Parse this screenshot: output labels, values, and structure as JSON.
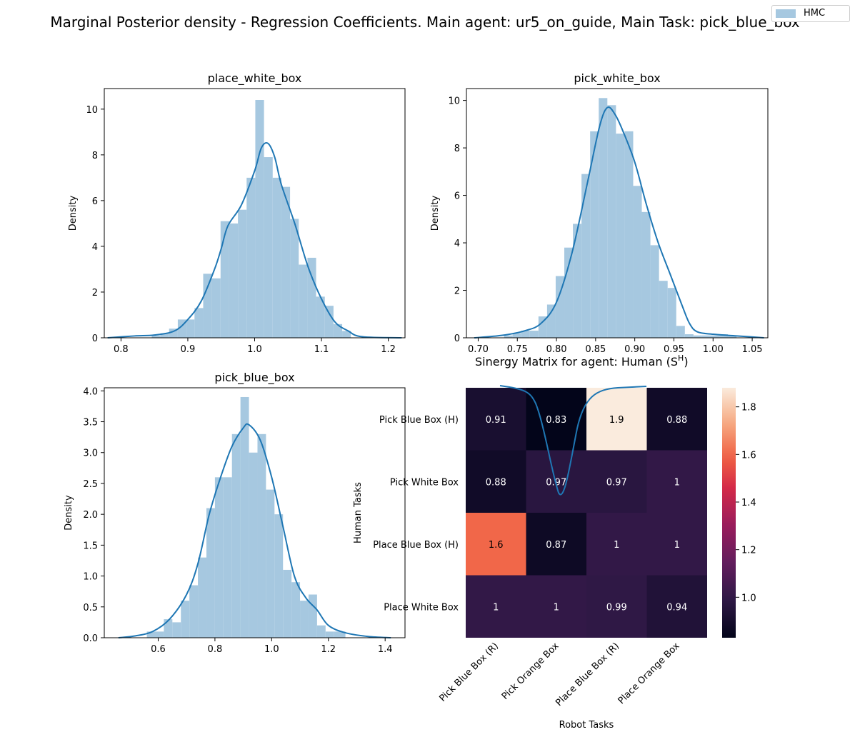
{
  "figure": {
    "suptitle": "Marginal Posterior density - Regression Coefficients. Main agent: ur5_on_guide, Main Task: pick_blue_box",
    "legend": {
      "label": "HMC",
      "placement": "top-right"
    },
    "colors": {
      "hist": "#a6c8e0",
      "kde": "#1f77b4"
    }
  },
  "chart_data": [
    {
      "type": "area",
      "title": "place_white_box",
      "xlabel": "",
      "ylabel": "Density",
      "xlim": [
        0.775,
        1.225
      ],
      "ylim": [
        0,
        10.9
      ],
      "xticks": [
        "0.8",
        "0.9",
        "1.0",
        "1.1",
        "1.2"
      ],
      "xtick_values": [
        0.8,
        0.9,
        1.0,
        1.1,
        1.2
      ],
      "yticks": [
        "0",
        "2",
        "4",
        "6",
        "8",
        "10"
      ],
      "ytick_values": [
        0,
        2,
        4,
        6,
        8,
        10
      ],
      "bin_edges": [
        0.846,
        0.859,
        0.872,
        0.885,
        0.898,
        0.91,
        0.923,
        0.936,
        0.949,
        0.962,
        0.975,
        0.988,
        1.001,
        1.014,
        1.027,
        1.04,
        1.053,
        1.066,
        1.079,
        1.092,
        1.105,
        1.118,
        1.131,
        1.144
      ],
      "hist_values": [
        0.1,
        0.2,
        0.4,
        0.8,
        0.8,
        1.3,
        2.8,
        2.6,
        5.1,
        5.0,
        5.6,
        7.0,
        10.4,
        7.9,
        7.0,
        6.6,
        5.2,
        3.2,
        3.5,
        1.8,
        1.4,
        0.6,
        0.3
      ],
      "kde": {
        "x": [
          0.78,
          0.82,
          0.85,
          0.88,
          0.9,
          0.92,
          0.94,
          0.95,
          0.96,
          0.98,
          1.0,
          1.01,
          1.02,
          1.03,
          1.04,
          1.06,
          1.08,
          1.1,
          1.12,
          1.14,
          1.16,
          1.22
        ],
        "y": [
          0,
          0.08,
          0.12,
          0.3,
          0.8,
          1.6,
          3.0,
          3.9,
          4.9,
          5.8,
          7.3,
          8.3,
          8.5,
          7.9,
          6.7,
          5.0,
          3.1,
          1.7,
          0.7,
          0.3,
          0.05,
          0
        ]
      }
    },
    {
      "type": "area",
      "title": "pick_white_box",
      "xlabel": "",
      "ylabel": "Density",
      "xlim": [
        0.685,
        1.07
      ],
      "ylim": [
        0,
        10.5
      ],
      "xticks": [
        "0.70",
        "0.75",
        "0.80",
        "0.85",
        "0.90",
        "0.95",
        "1.00",
        "1.05"
      ],
      "xtick_values": [
        0.7,
        0.75,
        0.8,
        0.85,
        0.9,
        0.95,
        1.0,
        1.05
      ],
      "yticks": [
        "0",
        "2",
        "4",
        "6",
        "8",
        "10"
      ],
      "ytick_values": [
        0,
        2,
        4,
        6,
        8,
        10
      ],
      "bin_edges": [
        0.733,
        0.744,
        0.755,
        0.766,
        0.777,
        0.788,
        0.799,
        0.81,
        0.821,
        0.832,
        0.843,
        0.854,
        0.865,
        0.876,
        0.887,
        0.898,
        0.909,
        0.92,
        0.931,
        0.942,
        0.953,
        0.964,
        0.975,
        0.986,
        0.997,
        1.008,
        1.019,
        1.03
      ],
      "hist_values": [
        0.1,
        0.2,
        0.3,
        0.3,
        0.9,
        1.4,
        2.6,
        3.8,
        4.8,
        6.9,
        8.7,
        10.1,
        9.8,
        8.6,
        8.7,
        6.4,
        5.3,
        3.9,
        2.4,
        2.1,
        0.5,
        0.15,
        0.1,
        0.1,
        0.1,
        0.15,
        0.1
      ],
      "kde": {
        "x": [
          0.695,
          0.73,
          0.76,
          0.78,
          0.8,
          0.82,
          0.84,
          0.855,
          0.865,
          0.875,
          0.885,
          0.9,
          0.915,
          0.93,
          0.945,
          0.96,
          0.97,
          0.98,
          1.0,
          1.03,
          1.065
        ],
        "y": [
          0,
          0.1,
          0.3,
          0.6,
          1.5,
          3.6,
          6.6,
          8.9,
          9.7,
          9.4,
          8.7,
          7.4,
          5.6,
          4.0,
          2.7,
          1.4,
          0.6,
          0.25,
          0.15,
          0.08,
          0
        ]
      }
    },
    {
      "type": "area",
      "title": "pick_blue_box",
      "xlabel": "",
      "ylabel": "Density",
      "xlim": [
        0.41,
        1.47
      ],
      "ylim": [
        0,
        4.05
      ],
      "xticks": [
        "0.6",
        "0.8",
        "1.0",
        "1.2",
        "1.4"
      ],
      "xtick_values": [
        0.6,
        0.8,
        1.0,
        1.2,
        1.4
      ],
      "yticks": [
        "0.0",
        "0.5",
        "1.0",
        "1.5",
        "2.0",
        "2.5",
        "3.0",
        "3.5",
        "4.0"
      ],
      "ytick_values": [
        0,
        0.5,
        1.0,
        1.5,
        2.0,
        2.5,
        3.0,
        3.5,
        4.0
      ],
      "bin_edges": [
        0.56,
        0.59,
        0.62,
        0.65,
        0.68,
        0.71,
        0.74,
        0.77,
        0.8,
        0.83,
        0.86,
        0.89,
        0.92,
        0.95,
        0.98,
        1.01,
        1.04,
        1.07,
        1.1,
        1.13,
        1.16,
        1.19,
        1.22,
        1.26
      ],
      "hist_values": [
        0.1,
        0.1,
        0.3,
        0.25,
        0.6,
        0.85,
        1.3,
        2.1,
        2.6,
        2.6,
        3.3,
        3.9,
        3.0,
        3.3,
        2.4,
        2.0,
        1.1,
        0.9,
        0.6,
        0.7,
        0.2,
        0.1,
        0.1
      ],
      "kde": {
        "x": [
          0.46,
          0.52,
          0.58,
          0.64,
          0.7,
          0.74,
          0.78,
          0.82,
          0.86,
          0.9,
          0.92,
          0.96,
          1.0,
          1.04,
          1.08,
          1.12,
          1.16,
          1.2,
          1.26,
          1.34,
          1.42
        ],
        "y": [
          0,
          0.03,
          0.1,
          0.3,
          0.7,
          1.2,
          2.0,
          2.6,
          3.1,
          3.4,
          3.45,
          3.2,
          2.6,
          1.8,
          1.0,
          0.65,
          0.45,
          0.2,
          0.08,
          0.02,
          0
        ]
      }
    },
    {
      "type": "heatmap",
      "title": "Sinergy Matrix for agent: Human (S",
      "title_sup": "H",
      "title_end": ")",
      "xlabel": "Robot Tasks",
      "ylabel": "Human Tasks",
      "x_categories": [
        "Pick Blue Box (R)",
        "Pick Orange Box",
        "Place Blue Box (R)",
        "Place Orange Box"
      ],
      "y_categories": [
        "Pick Blue Box (H)",
        "Pick White Box",
        "Place Blue Box (H)",
        "Place White Box"
      ],
      "values": [
        [
          0.91,
          0.83,
          1.9,
          0.88
        ],
        [
          0.88,
          0.97,
          0.97,
          1.0
        ],
        [
          1.6,
          0.87,
          1.0,
          1.0
        ],
        [
          1.0,
          1.0,
          0.99,
          0.94
        ]
      ],
      "labels": [
        [
          "0.91",
          "0.83",
          "1.9",
          "0.88"
        ],
        [
          "0.88",
          "0.97",
          "0.97",
          "1"
        ],
        [
          "1.6",
          "0.87",
          "1",
          "1"
        ],
        [
          "1",
          "1",
          "0.99",
          "0.94"
        ]
      ],
      "colorbar": {
        "min": 0.83,
        "max": 1.88,
        "ticks": [
          "1.0",
          "1.2",
          "1.4",
          "1.6",
          "1.8"
        ],
        "tick_values": [
          1.0,
          1.2,
          1.4,
          1.6,
          1.8
        ]
      }
    }
  ]
}
